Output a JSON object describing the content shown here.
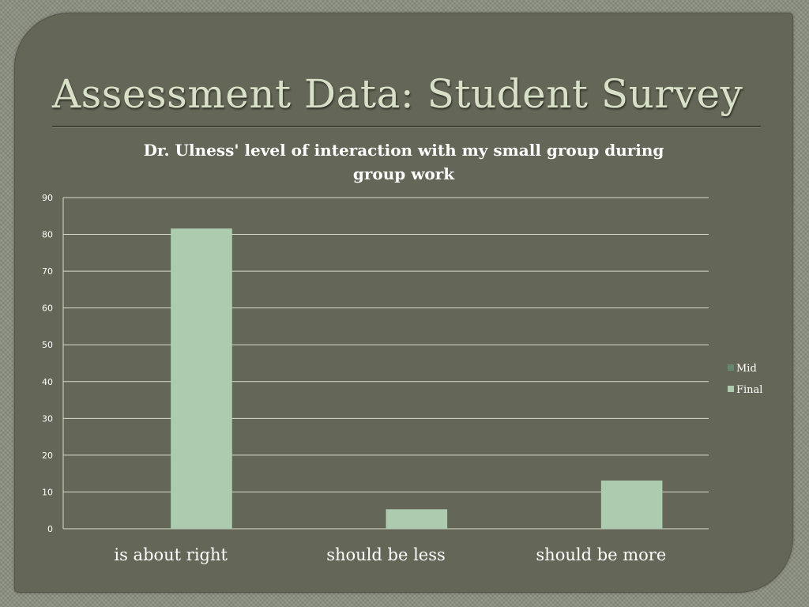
{
  "slide": {
    "title": "Assessment Data: Student Survey"
  },
  "colors": {
    "background": "#646657",
    "mid": "#62886f",
    "final": "#adcbaf",
    "grid": "#d8dcd0"
  },
  "chart_data": {
    "type": "bar",
    "title_lines": [
      "Dr. Ulness' level of interaction with my small group during",
      "group work"
    ],
    "categories": [
      "is about right",
      "should be less",
      "should be more"
    ],
    "series": [
      {
        "name": "Mid",
        "values": [
          0,
          0,
          0
        ]
      },
      {
        "name": "Final",
        "values": [
          81.6,
          5.3,
          13.1
        ]
      }
    ],
    "ylim": [
      0,
      90
    ],
    "yticks": [
      0,
      10,
      20,
      30,
      40,
      50,
      60,
      70,
      80,
      90
    ],
    "grid": true,
    "legend": "right"
  }
}
